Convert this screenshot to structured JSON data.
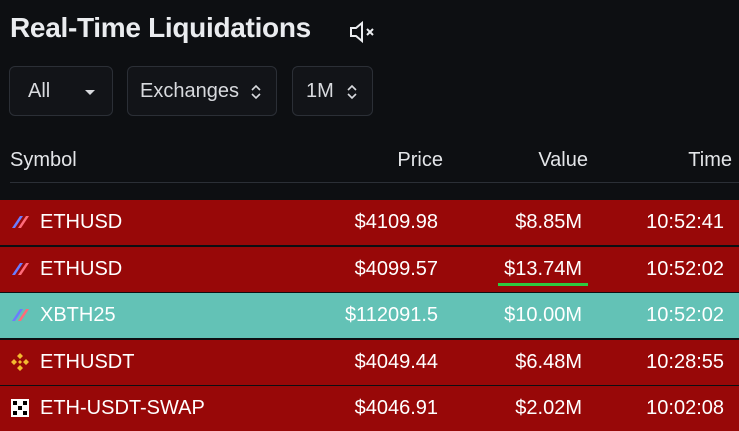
{
  "header": {
    "title": "Real-Time Liquidations"
  },
  "filters": [
    "All",
    "Exchanges",
    "1M"
  ],
  "table": {
    "columns": [
      "Symbol",
      "Price",
      "Value",
      "Time"
    ],
    "rows": [
      {
        "symbol": "ETHUSD",
        "price": "$4109.98",
        "value": "$8.85M",
        "time": "10:52:41",
        "color": "#980808"
      },
      {
        "symbol": "ETHUSD",
        "price": "$4099.57",
        "value": "$13.74M",
        "time": "10:52:02",
        "color": "#980808"
      },
      {
        "symbol": "XBTH25",
        "price": "$112091.5",
        "value": "$10.00M",
        "time": "10:52:02",
        "color": "#63c2b6"
      },
      {
        "symbol": "ETHUSDT",
        "price": "$4049.44",
        "value": "$6.48M",
        "time": "10:28:55",
        "color": "#980808"
      },
      {
        "symbol": "ETH-USDT-SWAP",
        "price": "$4046.91",
        "value": "$2.02M",
        "time": "10:02:08",
        "color": "#980808"
      }
    ]
  }
}
